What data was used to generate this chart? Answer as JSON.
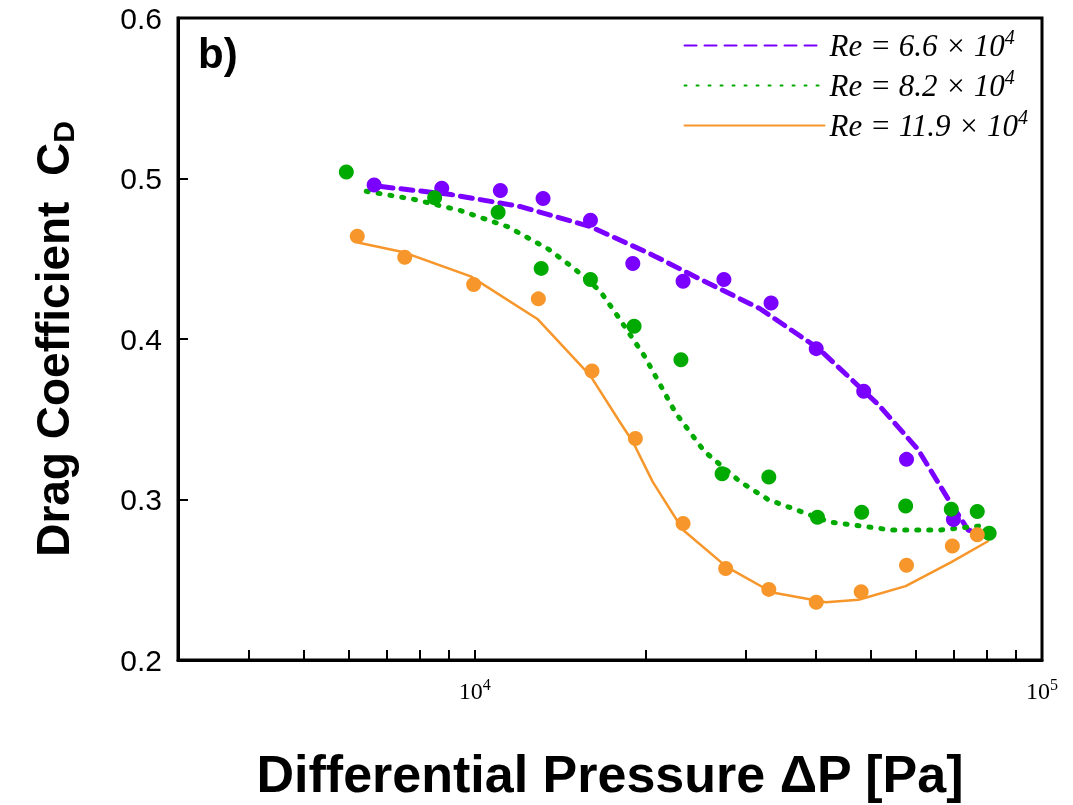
{
  "chart_data": {
    "type": "scatter",
    "xlabel": "Differential Pressure ΔP [Pa]",
    "ylabel": "Drag Coefficient  C$_{D}$",
    "annotations": [
      "b)"
    ],
    "log": "x",
    "grid": false,
    "legend": "top right",
    "xlim": [
      3000,
      100000
    ],
    "xticks": [
      {
        "value": 4000,
        "label": null
      },
      {
        "value": 5000,
        "label": null
      },
      {
        "value": 6000,
        "label": null
      },
      {
        "value": 7000,
        "label": null
      },
      {
        "value": 8000,
        "label": null
      },
      {
        "value": 9000,
        "label": null
      },
      {
        "value": 10000,
        "label": "10$^{4}$"
      },
      {
        "value": 20000,
        "label": null
      },
      {
        "value": 30000,
        "label": null
      },
      {
        "value": 40000,
        "label": null
      },
      {
        "value": 50000,
        "label": null
      },
      {
        "value": 60000,
        "label": null
      },
      {
        "value": 70000,
        "label": null
      },
      {
        "value": 80000,
        "label": null
      },
      {
        "value": 90000,
        "label": null
      },
      {
        "value": 100000,
        "label": "10$^{5}$"
      }
    ],
    "ylim": [
      0.2,
      0.6
    ],
    "yticks": [
      0.2,
      0.3,
      0.4,
      0.5,
      0.6
    ],
    "series": [
      {
        "name": "Re = 6.6 × 10$^{4}$",
        "type": "line",
        "color": "#7a00ff",
        "line_style": "dashed",
        "marker": "none",
        "x": [
          6840,
          9080,
          12050,
          16000,
          20400,
          24900,
          31800,
          40400,
          51500,
          60500,
          68400,
          74100,
          78800
        ],
        "values": [
          0.495,
          0.49,
          0.4825,
          0.47,
          0.453,
          0.4375,
          0.419,
          0.394,
          0.359,
          0.331,
          0.3,
          0.281,
          0.278
        ]
      },
      {
        "name": "Re = 8.2 × 10$^{4}$",
        "type": "line",
        "color": "#00aa00",
        "line_style": "dotted",
        "marker": "none",
        "x": [
          6440,
          7820,
          9440,
          11430,
          13490,
          14970,
          16630,
          17890,
          19950,
          22600,
          25400,
          29400,
          32900,
          42200,
          54300,
          66200,
          80300
        ],
        "values": [
          0.492,
          0.487,
          0.48,
          0.47,
          0.456,
          0.444,
          0.43,
          0.414,
          0.389,
          0.354,
          0.33,
          0.311,
          0.3,
          0.286,
          0.281,
          0.281,
          0.284
        ]
      },
      {
        "name": "Re = 11.9 × 10$^{4}$",
        "type": "line",
        "color": "#f7962a",
        "line_style": "solid",
        "marker": "none",
        "x": [
          6250,
          7500,
          9840,
          12900,
          16000,
          18050,
          19000,
          20600,
          23300,
          27800,
          33500,
          41600,
          47500,
          57500,
          69200,
          80300
        ],
        "values": [
          0.46,
          0.454,
          0.439,
          0.4125,
          0.377,
          0.348,
          0.336,
          0.311,
          0.281,
          0.258,
          0.242,
          0.236,
          0.2375,
          0.246,
          0.261,
          0.274
        ]
      },
      {
        "color": "#7a00ff",
        "marker": "circle",
        "x": [
          6650,
          8750,
          11100,
          13200,
          16000,
          19000,
          23300,
          27500,
          33300,
          40000,
          48500,
          57700,
          69800
        ],
        "values": [
          0.496,
          0.494,
          0.4925,
          0.4875,
          0.474,
          0.447,
          0.436,
          0.437,
          0.4225,
          0.394,
          0.3675,
          0.325,
          0.2875
        ]
      },
      {
        "color": "#00aa00",
        "marker": "circle",
        "x": [
          5940,
          8500,
          11000,
          13100,
          16000,
          19100,
          23100,
          27300,
          33000,
          40200,
          48100,
          57500,
          69200,
          76900,
          80700
        ],
        "values": [
          0.504,
          0.488,
          0.479,
          0.444,
          0.437,
          0.408,
          0.387,
          0.316,
          0.314,
          0.289,
          0.292,
          0.296,
          0.294,
          0.2925,
          0.279
        ]
      },
      {
        "color": "#f7962a",
        "marker": "circle",
        "x": [
          6210,
          7530,
          9960,
          12950,
          16100,
          19200,
          23300,
          27700,
          33000,
          40000,
          48000,
          57700,
          69500,
          76900
        ],
        "values": [
          0.464,
          0.451,
          0.434,
          0.425,
          0.38,
          0.338,
          0.285,
          0.257,
          0.244,
          0.236,
          0.2425,
          0.259,
          0.271,
          0.278
        ]
      }
    ]
  }
}
